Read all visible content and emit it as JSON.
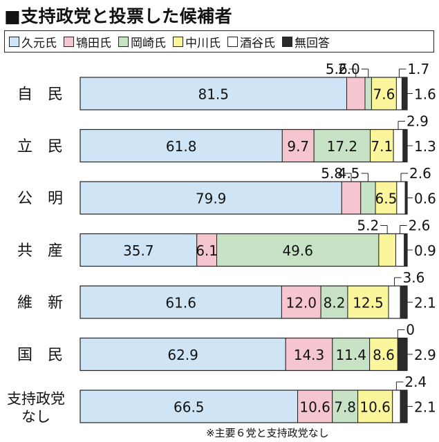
{
  "title": "■支持政党と投票した候補者",
  "legend": [
    {
      "label": "久元氏",
      "color": "#cfe5f6"
    },
    {
      "label": "鴇田氏",
      "color": "#f5c6cf"
    },
    {
      "label": "岡崎氏",
      "color": "#c8e2c6"
    },
    {
      "label": "中川氏",
      "color": "#fbf59b"
    },
    {
      "label": "酒谷氏",
      "color": "#ffffff"
    },
    {
      "label": "無回答",
      "color": "#2b2b2b"
    }
  ],
  "footnote": "※主要６党と支持政党なし",
  "chart_data": {
    "type": "bar",
    "orientation": "horizontal",
    "stacked": true,
    "percent": true,
    "categories": [
      "自　民",
      "立　民",
      "公　明",
      "共　産",
      "維　新",
      "国　民",
      "支持政党なし"
    ],
    "category_lines": [
      [
        "自　民"
      ],
      [
        "立　民"
      ],
      [
        "公　明"
      ],
      [
        "共　産"
      ],
      [
        "維　新"
      ],
      [
        "国　民"
      ],
      [
        "支持政党",
        "なし"
      ]
    ],
    "series": [
      {
        "name": "久元氏",
        "values": [
          81.5,
          61.8,
          79.9,
          35.7,
          61.6,
          62.9,
          66.5
        ]
      },
      {
        "name": "鴇田氏",
        "values": [
          5.6,
          9.7,
          5.8,
          6.1,
          12.0,
          14.3,
          10.6
        ]
      },
      {
        "name": "岡崎氏",
        "values": [
          2.0,
          17.2,
          4.5,
          49.6,
          8.2,
          11.4,
          7.8
        ]
      },
      {
        "name": "中川氏",
        "values": [
          7.6,
          7.1,
          6.5,
          5.2,
          12.5,
          8.6,
          10.6
        ]
      },
      {
        "name": "酒谷氏",
        "values": [
          1.7,
          2.9,
          2.6,
          2.6,
          3.6,
          0,
          2.4
        ]
      },
      {
        "name": "無回答",
        "values": [
          1.6,
          1.3,
          0.6,
          0.9,
          2.1,
          2.9,
          2.1
        ]
      }
    ],
    "labels": [
      [
        "81.5",
        "5.6",
        "2.0",
        "7.6",
        "1.7",
        "1.6"
      ],
      [
        "61.8",
        "9.7",
        "17.2",
        "7.1",
        "2.9",
        "1.3"
      ],
      [
        "79.9",
        "5.8",
        "4.5",
        "6.5",
        "2.6",
        "0.6"
      ],
      [
        "35.7",
        "6.1",
        "49.6",
        "5.2",
        "2.6",
        "0.9"
      ],
      [
        "61.6",
        "12.0",
        "8.2",
        "12.5",
        "3.6",
        "2.1"
      ],
      [
        "62.9",
        "14.3",
        "11.4",
        "8.6",
        "0",
        "2.9"
      ],
      [
        "66.5",
        "10.6",
        "7.8",
        "10.6",
        "2.4",
        "2.1"
      ]
    ],
    "xlim": [
      0,
      100
    ],
    "grid": false,
    "legend_position": "top"
  }
}
